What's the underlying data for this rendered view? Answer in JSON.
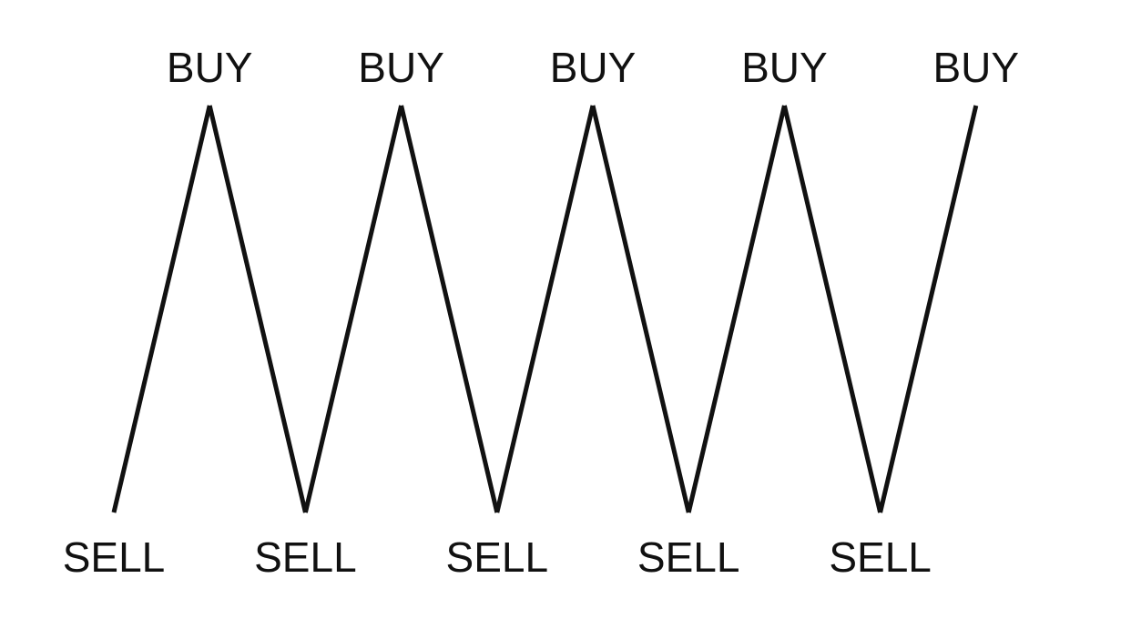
{
  "diagram": {
    "sequence": [
      "SELL",
      "BUY",
      "SELL",
      "BUY",
      "SELL",
      "BUY",
      "SELL",
      "BUY",
      "SELL",
      "BUY"
    ],
    "buy_label": "BUY",
    "sell_label": "SELL",
    "line_color": "#111111",
    "text_color": "#111111",
    "background": "#ffffff"
  }
}
